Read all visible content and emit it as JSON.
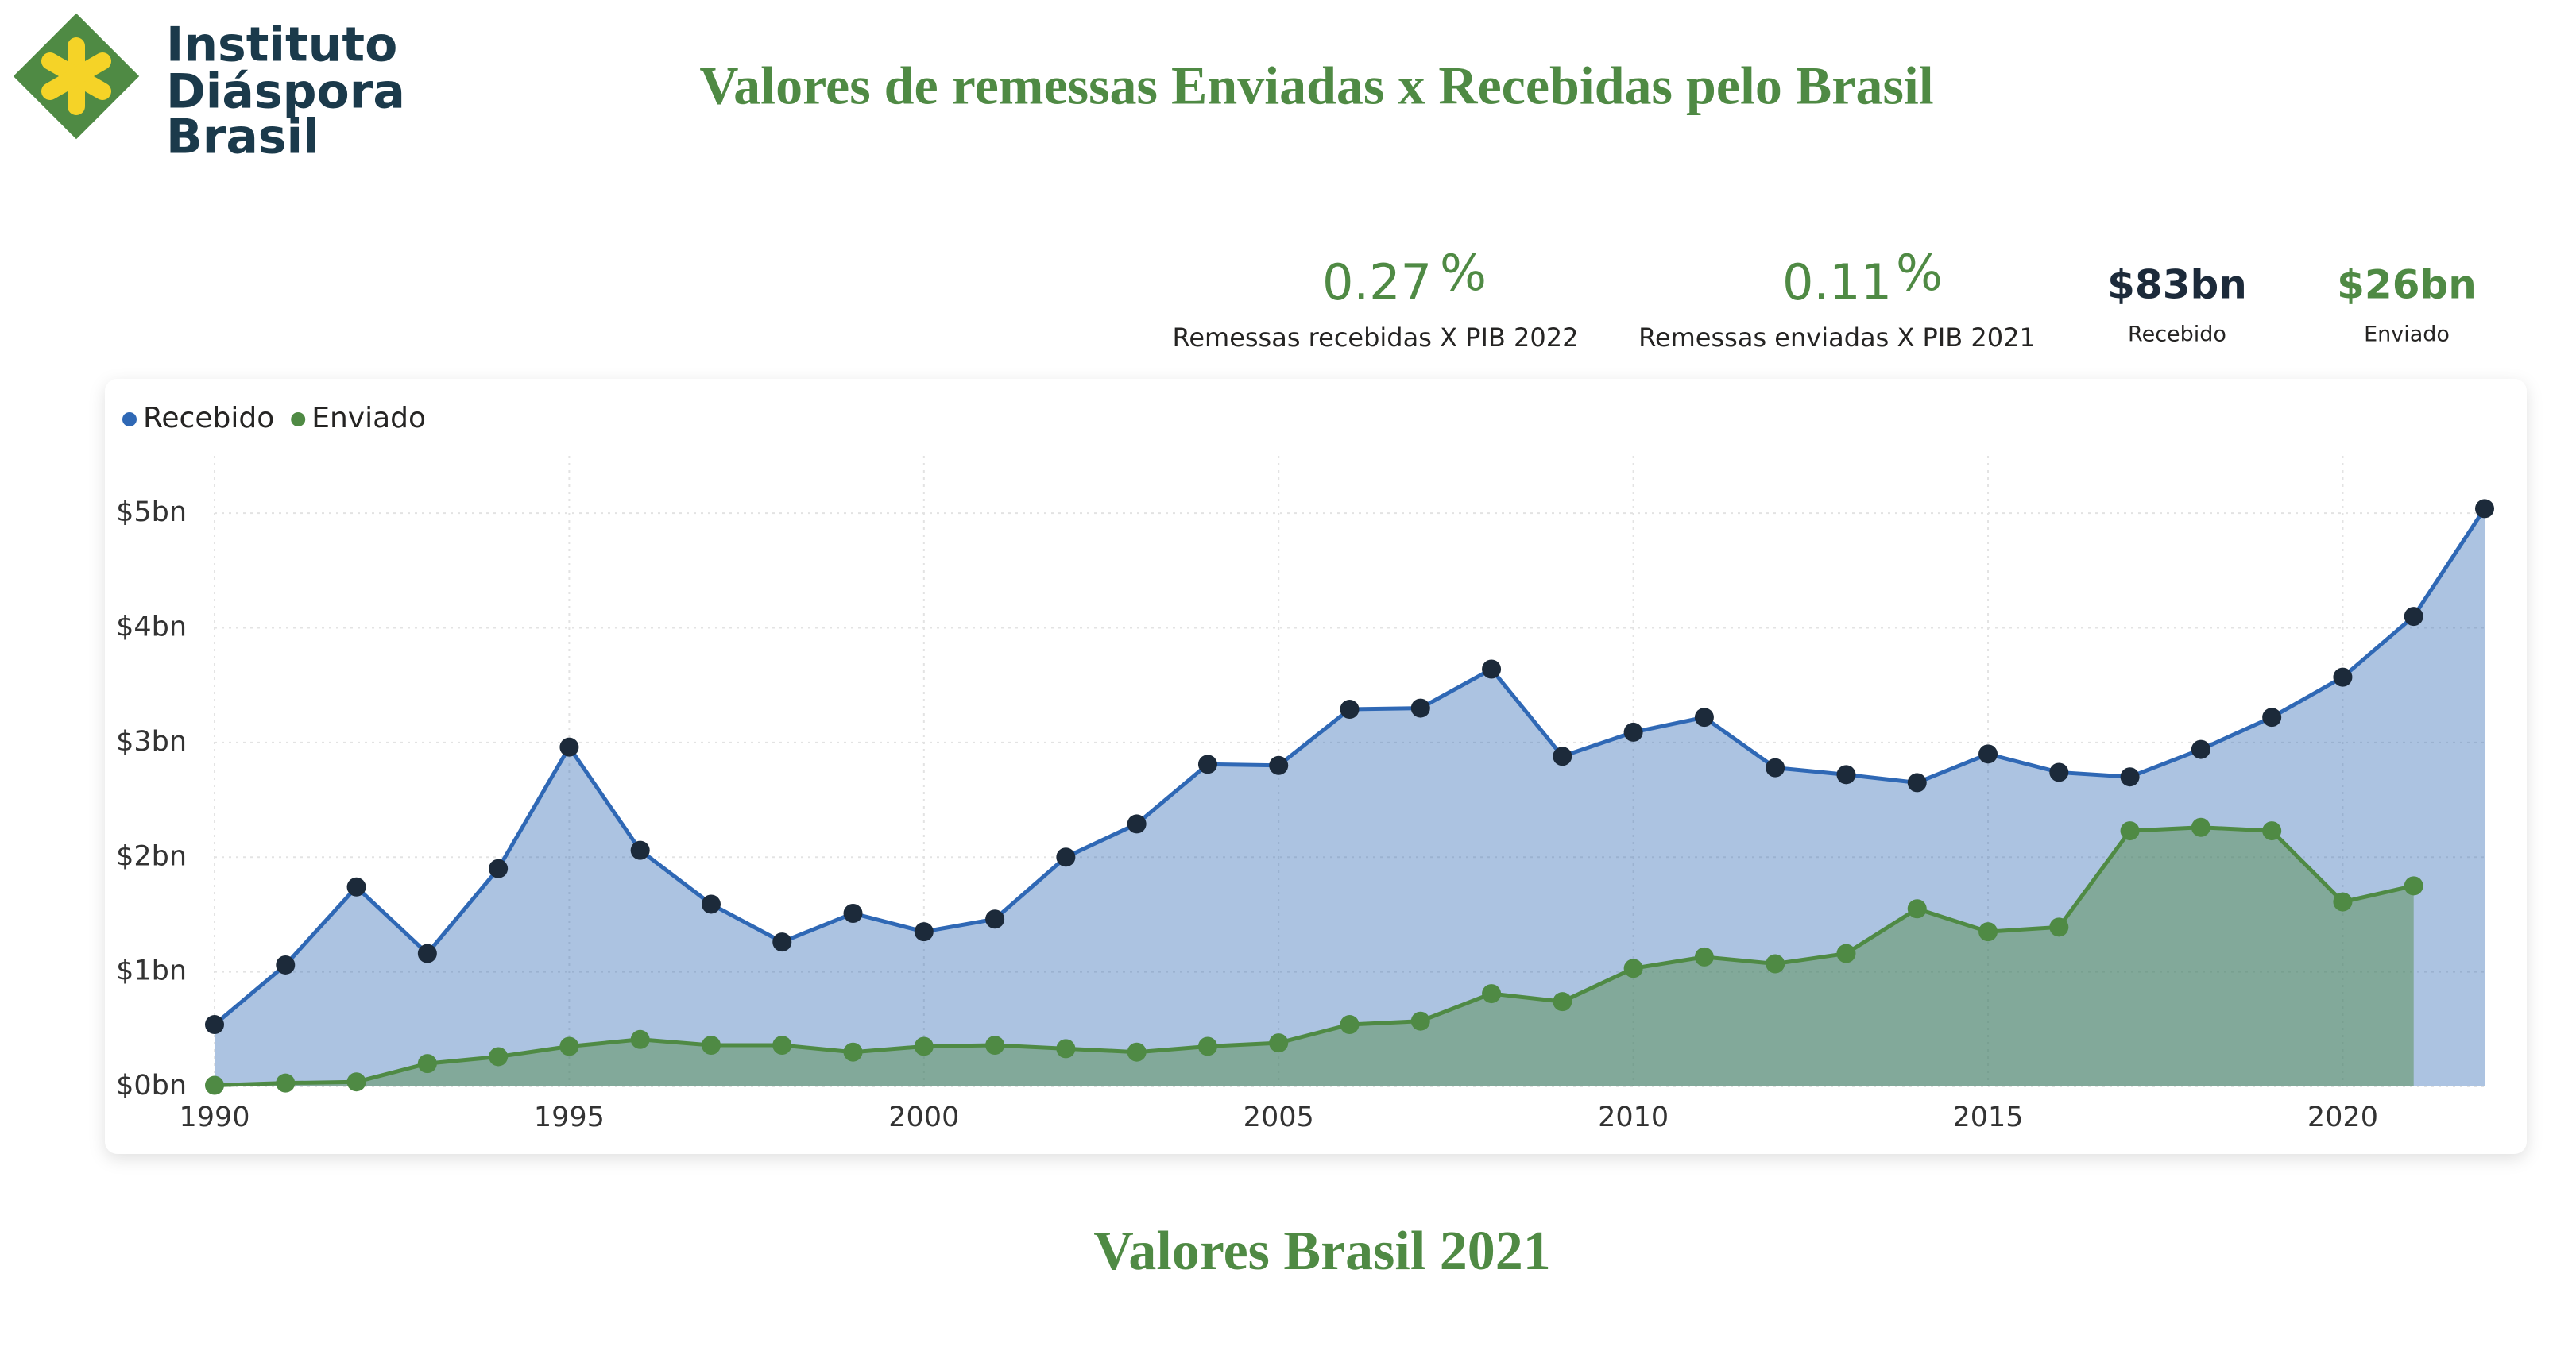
{
  "logo": {
    "lines": [
      "Instituto",
      "Diáspora",
      "Brasil"
    ]
  },
  "title": "Valores de remessas Enviadas x Recebidas pelo Brasil",
  "kpis": [
    {
      "value": "0.27",
      "unit": "%",
      "label": "Remessas recebidas X PIB 2022"
    },
    {
      "value": "0.11",
      "unit": "%",
      "label": "Remessas enviadas X PIB 2021"
    },
    {
      "value": "$83bn",
      "label": "Recebido"
    },
    {
      "value": "$26bn",
      "label": "Enviado"
    }
  ],
  "chart_data": {
    "type": "area",
    "x": [
      1990,
      1991,
      1992,
      1993,
      1994,
      1995,
      1996,
      1997,
      1998,
      1999,
      2000,
      2001,
      2002,
      2003,
      2004,
      2005,
      2006,
      2007,
      2008,
      2009,
      2010,
      2011,
      2012,
      2013,
      2014,
      2015,
      2016,
      2017,
      2018,
      2019,
      2020,
      2021,
      2022
    ],
    "series": [
      {
        "name": "Recebido",
        "color": "#2f68b5",
        "marker_color": "#1c2a3a",
        "values": [
          0.54,
          1.06,
          1.74,
          1.16,
          1.9,
          2.96,
          2.06,
          1.59,
          1.26,
          1.51,
          1.35,
          1.46,
          2.0,
          2.29,
          2.81,
          2.8,
          3.29,
          3.3,
          3.64,
          2.88,
          3.09,
          3.22,
          2.78,
          2.72,
          2.65,
          2.9,
          2.74,
          2.7,
          2.94,
          3.22,
          3.57,
          4.1,
          5.04
        ]
      },
      {
        "name": "Enviado",
        "color": "#4f8a44",
        "marker_color": "#4f8a44",
        "values": [
          0.01,
          0.03,
          0.04,
          0.2,
          0.26,
          0.35,
          0.41,
          0.36,
          0.36,
          0.3,
          0.35,
          0.36,
          0.33,
          0.3,
          0.35,
          0.38,
          0.54,
          0.57,
          0.81,
          0.74,
          1.03,
          1.13,
          1.07,
          1.16,
          1.55,
          1.35,
          1.39,
          2.23,
          2.26,
          2.23,
          1.61,
          1.75,
          null
        ]
      }
    ],
    "xlim": [
      1990,
      2022
    ],
    "xticks": [
      1990,
      1995,
      2000,
      2005,
      2010,
      2015,
      2020
    ],
    "ylim": [
      0,
      5.5
    ],
    "yticks": [
      {
        "value": 0,
        "label": "$0bn"
      },
      {
        "value": 1,
        "label": "$1bn"
      },
      {
        "value": 2,
        "label": "$2bn"
      },
      {
        "value": 3,
        "label": "$3bn"
      },
      {
        "value": 4,
        "label": "$4bn"
      },
      {
        "value": 5,
        "label": "$5bn"
      }
    ],
    "grid": true,
    "legend": "top-left"
  },
  "footer_title": "Valores Brasil 2021"
}
